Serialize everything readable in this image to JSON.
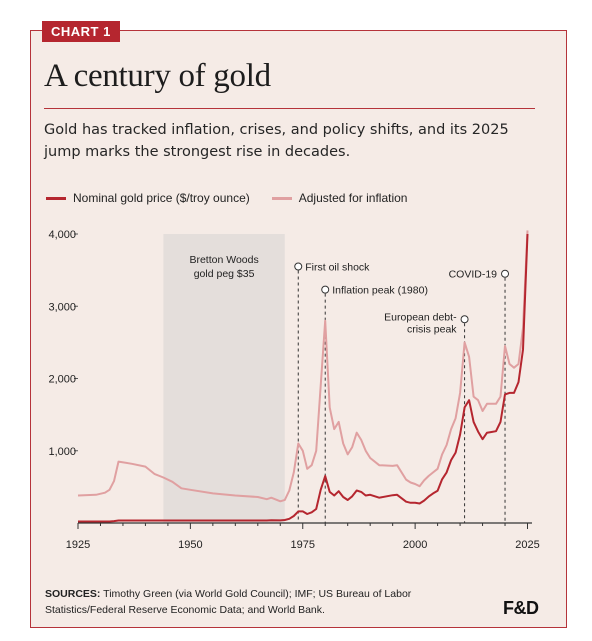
{
  "header": {
    "tag": "CHART 1",
    "title": "A century of gold",
    "subtitle": "Gold has tracked inflation, crises, and policy shifts, and its 2025 jump marks the strongest rise in decades."
  },
  "legend": {
    "nominal": "Nominal gold price ($/troy ounce)",
    "adjusted": "Adjusted for inflation"
  },
  "colors": {
    "nominal": "#b5262f",
    "adjusted": "#e0a0a1",
    "shade": "#e4dedb",
    "accent": "#b5333a",
    "background": "#f5ebe6"
  },
  "sources": {
    "label": "SOURCES:",
    "text": "Timothy Green (via World Gold Council); IMF; US Bureau of Labor Statistics/Federal Reserve Economic Data; and World Bank."
  },
  "logo": "F&D",
  "chart_data": {
    "type": "line",
    "xlim": [
      1925,
      2026
    ],
    "ylim": [
      0,
      4000
    ],
    "xticks": [
      1925,
      1950,
      1975,
      2000,
      2025
    ],
    "yticks": [
      1000,
      2000,
      3000,
      4000
    ],
    "ytick_labels": [
      "1,000",
      "2,000",
      "3,000",
      "4,000"
    ],
    "grid": false,
    "legend_position": "top-left",
    "shaded_regions": [
      {
        "from": 1944,
        "to": 1971,
        "label_lines": [
          "Bretton Woods",
          "gold peg $35"
        ]
      }
    ],
    "annotations": [
      {
        "x": 1974,
        "y": 3550,
        "label": "First oil shock"
      },
      {
        "x": 1980,
        "y": 3230,
        "label": "Inflation peak (1980)"
      },
      {
        "x": 2011,
        "y": 2820,
        "label_lines": [
          "European debt-",
          "crisis peak"
        ]
      },
      {
        "x": 2020,
        "y": 3450,
        "label": "COVID-19"
      }
    ],
    "series": [
      {
        "name": "Nominal gold price ($/troy ounce)",
        "x": [
          1925,
          1932,
          1933,
          1934,
          1944,
          1960,
          1967,
          1968,
          1970,
          1971,
          1972,
          1973,
          1974,
          1975,
          1976,
          1977,
          1978,
          1979,
          1980,
          1981,
          1982,
          1983,
          1984,
          1985,
          1986,
          1987,
          1988,
          1989,
          1990,
          1992,
          1995,
          1996,
          1998,
          1999,
          2000,
          2001,
          2002,
          2003,
          2004,
          2005,
          2006,
          2007,
          2008,
          2009,
          2010,
          2011,
          2012,
          2013,
          2014,
          2015,
          2016,
          2017,
          2018,
          2019,
          2020,
          2021,
          2022,
          2023,
          2024,
          2025
        ],
        "values": [
          20.7,
          20.7,
          26,
          35,
          35,
          35,
          35,
          39,
          36,
          41,
          58,
          97,
          160,
          160,
          125,
          148,
          194,
          460,
          650,
          430,
          380,
          440,
          360,
          318,
          370,
          450,
          430,
          380,
          390,
          350,
          385,
          390,
          295,
          280,
          280,
          270,
          310,
          365,
          410,
          445,
          605,
          700,
          870,
          975,
          1225,
          1600,
          1700,
          1400,
          1265,
          1160,
          1250,
          1260,
          1270,
          1400,
          1780,
          1800,
          1800,
          1950,
          2400,
          4000
        ]
      },
      {
        "name": "Adjusted for inflation",
        "x": [
          1925,
          1929,
          1931,
          1932,
          1933,
          1934,
          1937,
          1940,
          1942,
          1944,
          1946,
          1948,
          1950,
          1955,
          1960,
          1965,
          1967,
          1968,
          1970,
          1971,
          1972,
          1973,
          1974,
          1975,
          1976,
          1977,
          1978,
          1979,
          1980,
          1981,
          1982,
          1983,
          1984,
          1985,
          1986,
          1987,
          1988,
          1989,
          1990,
          1992,
          1995,
          1996,
          1998,
          1999,
          2000,
          2001,
          2002,
          2003,
          2004,
          2005,
          2006,
          2007,
          2008,
          2009,
          2010,
          2011,
          2012,
          2013,
          2014,
          2015,
          2016,
          2017,
          2018,
          2019,
          2020,
          2021,
          2022,
          2023,
          2024,
          2025
        ],
        "values": [
          380,
          390,
          420,
          460,
          580,
          850,
          820,
          780,
          680,
          630,
          570,
          480,
          460,
          410,
          380,
          360,
          330,
          350,
          300,
          320,
          450,
          700,
          1100,
          1000,
          750,
          800,
          1000,
          1900,
          2800,
          1600,
          1300,
          1400,
          1100,
          950,
          1050,
          1250,
          1150,
          1000,
          900,
          800,
          790,
          800,
          600,
          560,
          540,
          510,
          590,
          650,
          700,
          750,
          950,
          1080,
          1300,
          1450,
          1800,
          2500,
          2300,
          1750,
          1700,
          1550,
          1650,
          1650,
          1650,
          1750,
          2450,
          2200,
          2150,
          2200,
          2700,
          4050
        ]
      }
    ]
  }
}
